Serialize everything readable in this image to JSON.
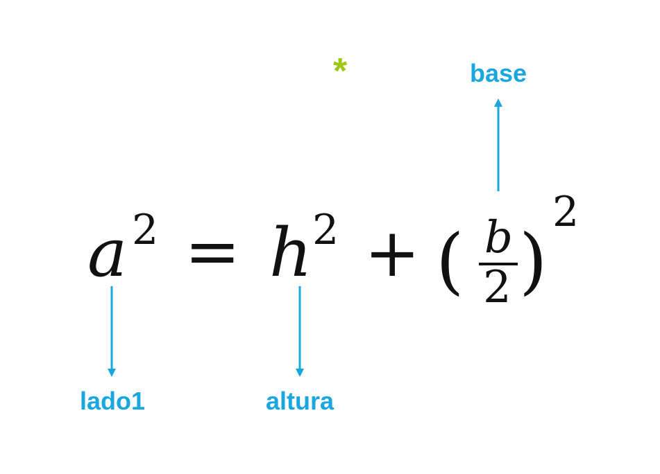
{
  "equation": {
    "a": "a",
    "a_exp": "2",
    "equals": "=",
    "h": "h",
    "h_exp": "2",
    "plus": "+",
    "lparen": "(",
    "numerator": "b",
    "denominator": "2",
    "rparen": ")",
    "outer_exp": "2"
  },
  "labels": {
    "lado1": "lado1",
    "altura": "altura",
    "base": "base"
  },
  "marker": "*",
  "colors": {
    "label": "#1aa7e0",
    "arrow": "#1aa7e0",
    "marker": "#9cc712",
    "math": "#111111"
  }
}
